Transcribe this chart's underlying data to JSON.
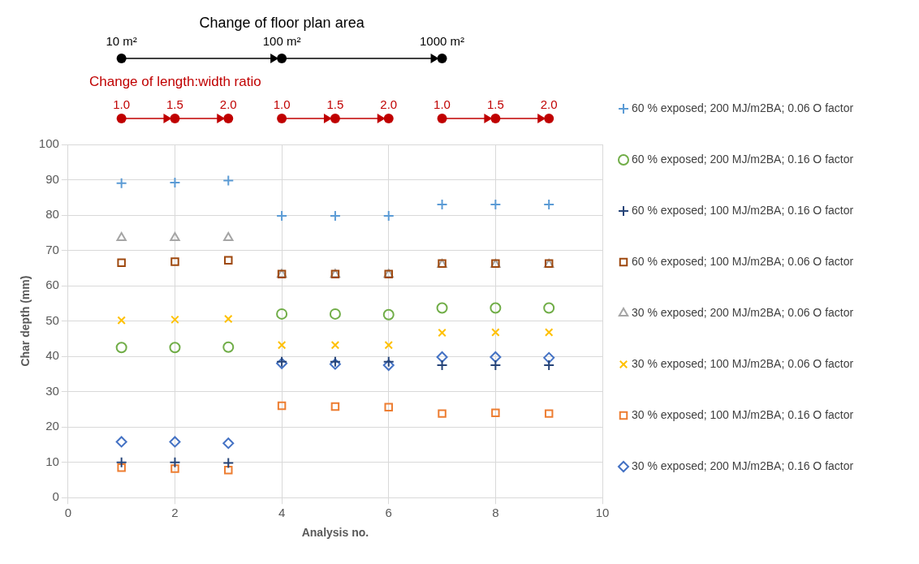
{
  "chart_data": {
    "type": "scatter",
    "xlabel": "Analysis no.",
    "ylabel": "Char depth (mm)",
    "xlim": [
      0,
      10
    ],
    "xticks": [
      0,
      2,
      4,
      6,
      8,
      10
    ],
    "ylim": [
      0,
      100
    ],
    "yticks": [
      0,
      10,
      20,
      30,
      40,
      50,
      60,
      70,
      80,
      90,
      100
    ],
    "grid": true,
    "legend": "right",
    "x": [
      1,
      2,
      3,
      4,
      5,
      6,
      7,
      8,
      9
    ],
    "series": [
      {
        "name": "60 % exposed; 200 MJ/m2BA; 0.06 O factor",
        "color": "#5b9bd5",
        "marker": "cross",
        "values": [
          89,
          89.2,
          89.8,
          79.8,
          79.8,
          79.8,
          83,
          83,
          83
        ]
      },
      {
        "name": "60 % exposed; 200 MJ/m2BA; 0.16 O factor",
        "color": "#70ad47",
        "marker": "circle",
        "values": [
          42.5,
          42.5,
          42.6,
          52,
          52,
          51.8,
          53.7,
          53.7,
          53.7
        ]
      },
      {
        "name": "60 % exposed; 100 MJ/m2BA; 0.16 O factor",
        "color": "#264478",
        "marker": "cross",
        "values": [
          10,
          10,
          9.8,
          38.5,
          38.5,
          38.5,
          37.5,
          37.5,
          37.5
        ]
      },
      {
        "name": "60 % exposed; 100 MJ/m2BA; 0.06 O factor",
        "color": "#9e480e",
        "marker": "square",
        "values": [
          66.5,
          66.8,
          67.2,
          63.3,
          63.3,
          63.3,
          66.3,
          66.3,
          66.3
        ]
      },
      {
        "name": "30 % exposed; 200 MJ/m2BA; 0.06 O factor",
        "color": "#a5a5a5",
        "marker": "triangle",
        "values": [
          73.6,
          73.6,
          73.6,
          63.2,
          63.2,
          63.2,
          66,
          66,
          66
        ]
      },
      {
        "name": "30 % exposed; 100 MJ/m2BA; 0.06 O factor",
        "color": "#ffc000",
        "marker": "x",
        "values": [
          50.2,
          50.4,
          50.6,
          43.2,
          43.2,
          43.2,
          46.7,
          46.8,
          46.8
        ]
      },
      {
        "name": "30 % exposed; 100 MJ/m2BA; 0.16 O factor",
        "color": "#ed7d31",
        "marker": "square",
        "values": [
          8.5,
          8.2,
          7.8,
          26,
          25.8,
          25.6,
          23.8,
          24,
          23.8
        ]
      },
      {
        "name": "30 % exposed; 200 MJ/m2BA; 0.16 O factor",
        "color": "#4472c4",
        "marker": "diamond",
        "values": [
          15.8,
          15.8,
          15.4,
          38,
          37.8,
          37.5,
          39.8,
          39.8,
          39.6
        ]
      }
    ],
    "annotations": [
      "Change of floor plan area",
      "10 m²",
      "100 m²",
      "1000 m²",
      "Change of length:width ratio",
      "1.0",
      "1.5",
      "2.0",
      "1.0",
      "1.5",
      "2.0",
      "1.0",
      "1.5",
      "2.0"
    ]
  }
}
